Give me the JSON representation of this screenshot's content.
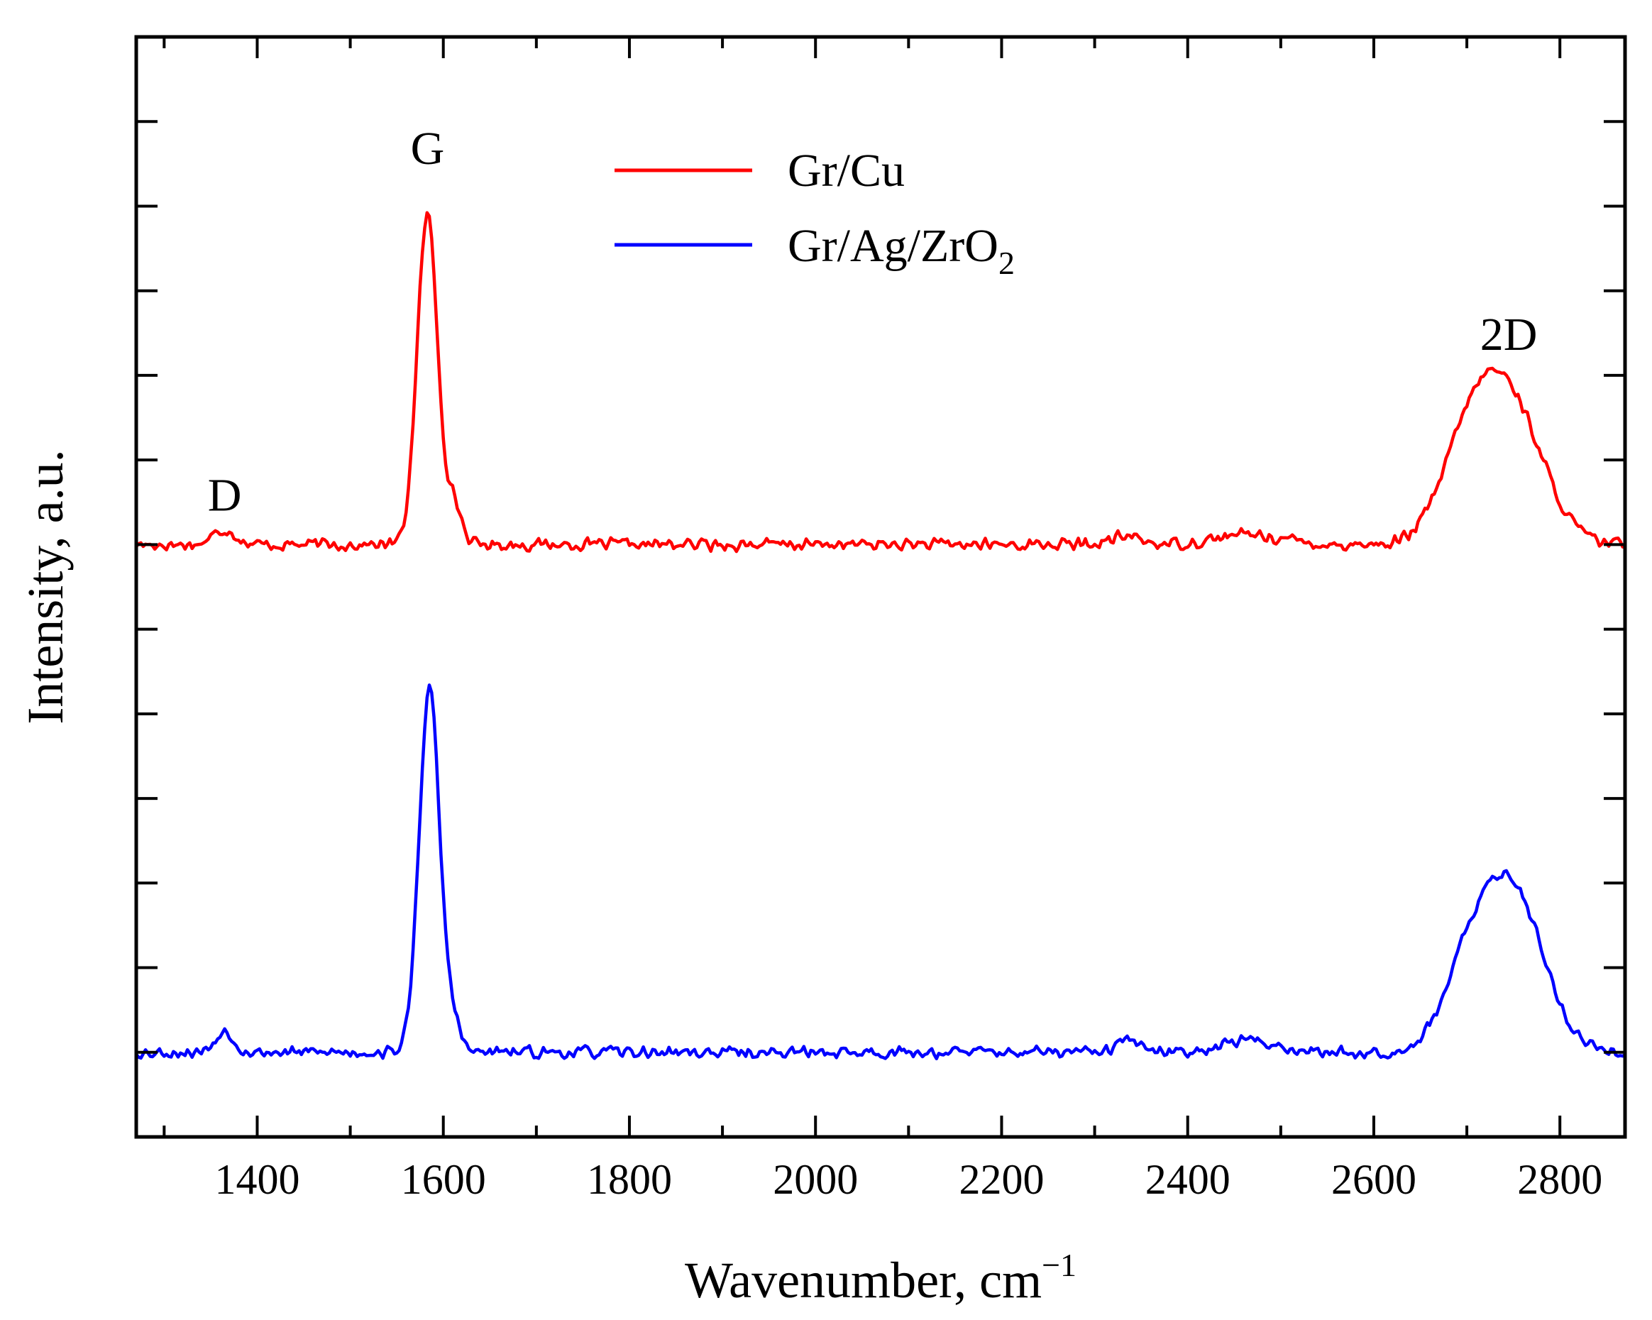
{
  "chart_data": {
    "type": "line",
    "title": "",
    "xlabel": "Wavenumber, cm",
    "xlabel_superscript": "−1",
    "ylabel": "Intensity, a.u.",
    "xlim": [
      1270,
      2870
    ],
    "ylim": [
      0,
      13
    ],
    "x_ticks": [
      1400,
      1600,
      1800,
      2000,
      2200,
      2400,
      2600,
      2800
    ],
    "x_tick_labels": [
      "1400",
      "1600",
      "1800",
      "2000",
      "2200",
      "2400",
      "2600",
      "2800"
    ],
    "y_ticks": [
      1,
      2,
      3,
      4,
      5,
      6,
      7,
      8,
      9,
      10,
      11,
      12
    ],
    "y_tick_labels_shown": false,
    "grid": false,
    "legend_position": "top-center",
    "series": [
      {
        "name": "Gr/Cu",
        "color": "#ff0000",
        "baseline": 7.0,
        "noise": 0.085,
        "seed": 17,
        "peaks": [
          {
            "center": 1365,
            "height": 0.18,
            "width": 12
          },
          {
            "center": 1583,
            "height": 3.9,
            "width": 11
          },
          {
            "center": 1612,
            "height": 0.45,
            "width": 8
          },
          {
            "center": 2335,
            "height": 0.1,
            "width": 15
          },
          {
            "center": 2465,
            "height": 0.12,
            "width": 35
          },
          {
            "center": 2700,
            "height": 0.9,
            "width": 30
          },
          {
            "center": 2745,
            "height": 1.65,
            "width": 36
          }
        ],
        "sample_peaks": [
          {
            "x": 1365,
            "y": 7.2
          },
          {
            "x": 1583,
            "y": 10.9
          },
          {
            "x": 2745,
            "y": 8.9
          }
        ]
      },
      {
        "name": "Gr/Ag/ZrO",
        "name_subscript": "2",
        "color": "#0000ff",
        "baseline": 1.0,
        "noise": 0.085,
        "seed": 53,
        "peaks": [
          {
            "center": 1365,
            "height": 0.25,
            "width": 10
          },
          {
            "center": 1585,
            "height": 4.3,
            "width": 11
          },
          {
            "center": 1610,
            "height": 0.35,
            "width": 8
          },
          {
            "center": 2335,
            "height": 0.16,
            "width": 10
          },
          {
            "center": 2465,
            "height": 0.14,
            "width": 30
          },
          {
            "center": 2700,
            "height": 0.75,
            "width": 28
          },
          {
            "center": 2748,
            "height": 1.9,
            "width": 34
          }
        ],
        "sample_peaks": [
          {
            "x": 1365,
            "y": 1.3
          },
          {
            "x": 1585,
            "y": 5.4
          },
          {
            "x": 2748,
            "y": 3.1
          }
        ]
      }
    ],
    "annotations": [
      {
        "text": "D",
        "x": 1365,
        "y": 7.4
      },
      {
        "text": "G",
        "x": 1583,
        "y": 11.5
      },
      {
        "text": "2D",
        "x": 2745,
        "y": 9.3
      }
    ]
  }
}
